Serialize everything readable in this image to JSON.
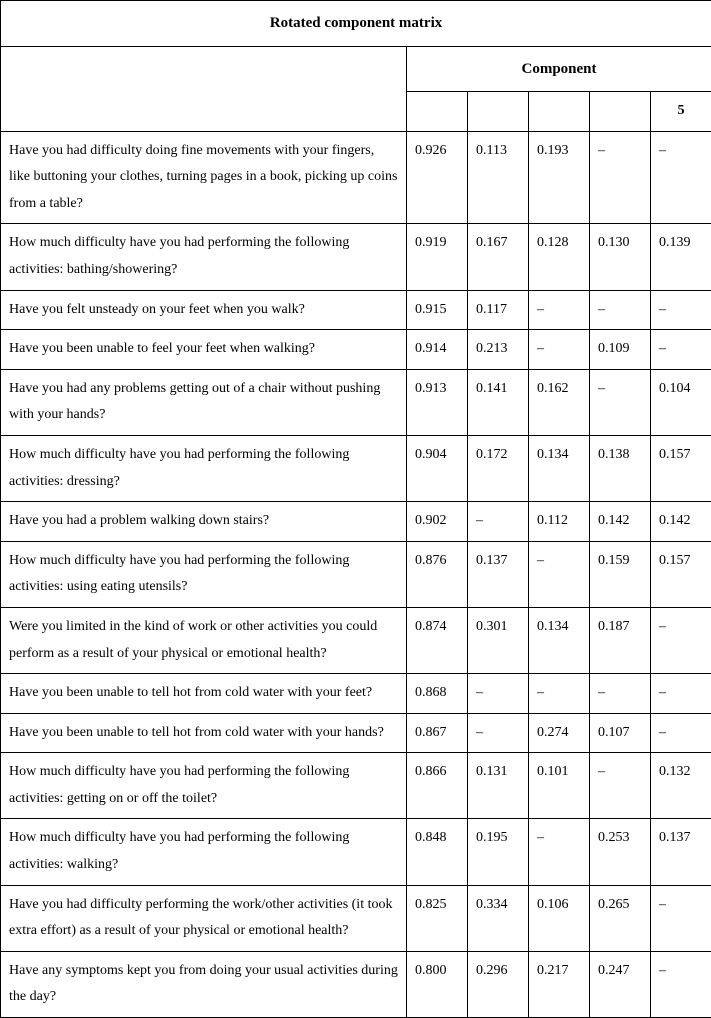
{
  "table": {
    "title": "Rotated component matrix",
    "component_header": "Component",
    "col_labels": [
      "",
      "",
      "",
      "",
      "5"
    ],
    "rows": [
      {
        "q": "Have you had difficulty doing fine movements with your fingers, like buttoning your clothes, turning pages in a book, picking up coins from a table?",
        "v": [
          "0.926",
          "0.113",
          "0.193",
          "–",
          "–"
        ]
      },
      {
        "q": "How much difficulty have you had performing the following activities: bathing/showering?",
        "v": [
          "0.919",
          "0.167",
          "0.128",
          "0.130",
          "0.139"
        ]
      },
      {
        "q": "Have you felt unsteady on your feet when you walk?",
        "v": [
          "0.915",
          "0.117",
          "–",
          "–",
          "–"
        ]
      },
      {
        "q": "Have you been unable to feel your feet when walking?",
        "v": [
          "0.914",
          "0.213",
          "–",
          "0.109",
          "–"
        ]
      },
      {
        "q": "Have you had any problems getting out of a chair without pushing with your hands?",
        "v": [
          "0.913",
          "0.141",
          "0.162",
          "–",
          "0.104"
        ]
      },
      {
        "q": "How much difficulty have you had performing the following activities: dressing?",
        "v": [
          "0.904",
          "0.172",
          "0.134",
          "0.138",
          "0.157"
        ]
      },
      {
        "q": "Have you had a problem walking down stairs?",
        "v": [
          "0.902",
          "–",
          "0.112",
          "0.142",
          "0.142"
        ]
      },
      {
        "q": "How much difficulty have you had performing the following activities: using eating utensils?",
        "v": [
          "0.876",
          "0.137",
          "–",
          "0.159",
          "0.157"
        ]
      },
      {
        "q": "Were you limited in the kind of work or other activities you could perform as a result of your physical or emotional health?",
        "v": [
          "0.874",
          "0.301",
          "0.134",
          "0.187",
          "–"
        ]
      },
      {
        "q": "Have you been unable to tell hot from cold water with your feet?",
        "v": [
          "0.868",
          "–",
          "–",
          "–",
          "–"
        ]
      },
      {
        "q": "Have you been unable to tell hot from cold water with your hands?",
        "v": [
          "0.867",
          "–",
          "0.274",
          "0.107",
          "–"
        ]
      },
      {
        "q": "How much difficulty have you had performing the following activities: getting on or off the toilet?",
        "v": [
          "0.866",
          "0.131",
          "0.101",
          "–",
          "0.132"
        ]
      },
      {
        "q": "How much difficulty have you had performing the following activities: walking?",
        "v": [
          "0.848",
          "0.195",
          "–",
          "0.253",
          "0.137"
        ]
      },
      {
        "q": "Have you had difficulty performing the work/other activities (it took extra effort) as a result of your physical or emotional health?",
        "v": [
          "0.825",
          "0.334",
          "0.106",
          "0.265",
          "–"
        ]
      },
      {
        "q": "Have any symptoms kept you from doing your usual activities during the day?",
        "v": [
          "0.800",
          "0.296",
          "0.217",
          "0.247",
          "–"
        ]
      }
    ]
  }
}
